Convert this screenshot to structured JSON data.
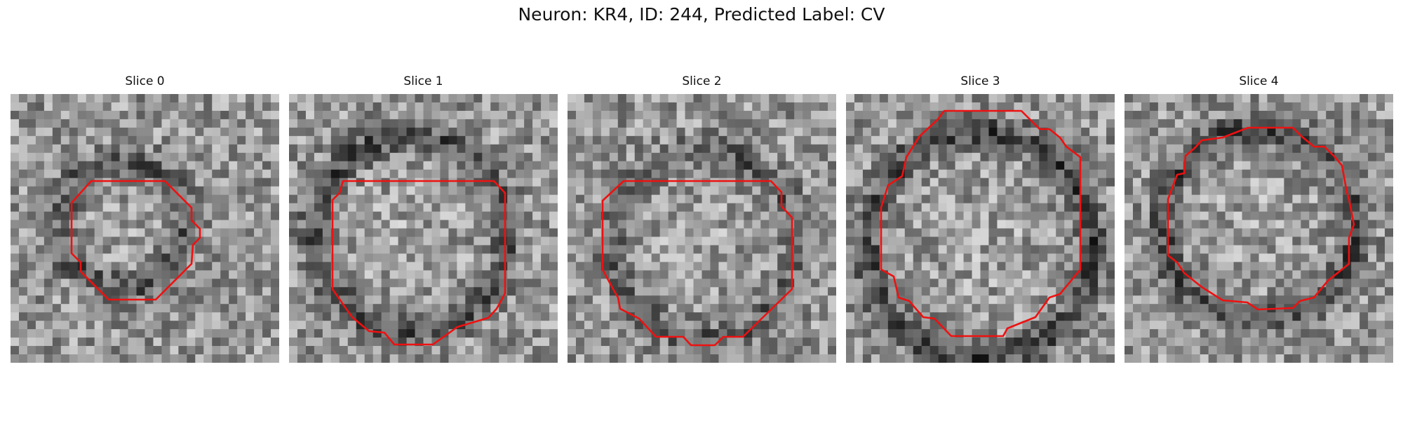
{
  "figure": {
    "title": "Neuron: KR4, ID: 244, Predicted Label: CV"
  },
  "panels": [
    {
      "title": "Slice 0"
    },
    {
      "title": "Slice 1"
    },
    {
      "title": "Slice 2"
    },
    {
      "title": "Slice 3"
    },
    {
      "title": "Slice 4"
    }
  ],
  "colors": {
    "contour": "#ee1111",
    "background": "#ffffff"
  }
}
